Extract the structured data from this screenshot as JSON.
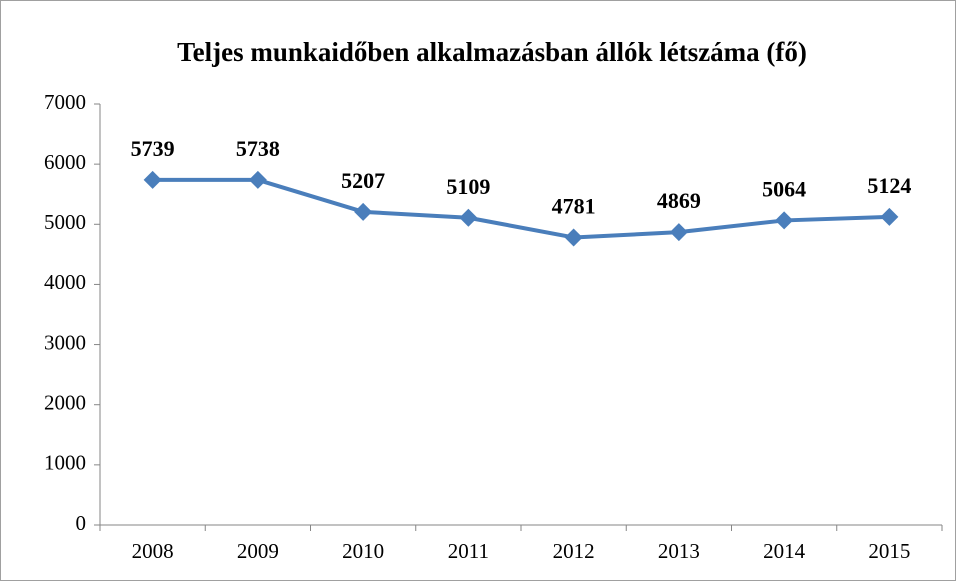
{
  "chart_data": {
    "type": "line",
    "title": "Teljes munkaidőben alkalmazásban állók létszáma (fő)",
    "categories": [
      "2008",
      "2009",
      "2010",
      "2011",
      "2012",
      "2013",
      "2014",
      "2015"
    ],
    "values": [
      5739,
      5738,
      5207,
      5109,
      4781,
      4869,
      5064,
      5124
    ],
    "color": "#4a7ebb",
    "ylim": [
      0,
      7000
    ],
    "yticks": [
      0,
      1000,
      2000,
      3000,
      4000,
      5000,
      6000,
      7000
    ],
    "grid": false
  }
}
